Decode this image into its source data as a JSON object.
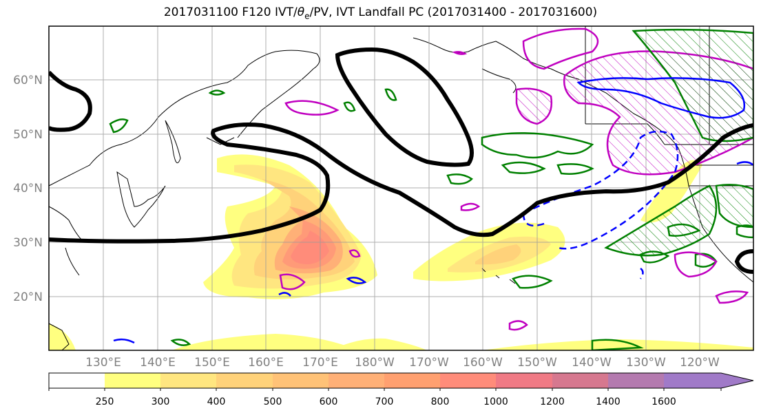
{
  "title": {
    "prefix": "2017031100 F120 IVT/",
    "theta": "θ",
    "theta_sub": "e",
    "suffix": "/PV, IVT Landfall PC (2017031400 - 2017031600)"
  },
  "map": {
    "lat_labels": [
      "20°N",
      "30°N",
      "40°N",
      "50°N",
      "60°N"
    ],
    "lon_labels": [
      "130°E",
      "140°E",
      "150°E",
      "160°E",
      "170°E",
      "180°W",
      "170°W",
      "160°W",
      "150°W",
      "140°W",
      "130°W",
      "120°W"
    ]
  },
  "colorbar": {
    "ticks": [
      "250",
      "300",
      "400",
      "500",
      "600",
      "700",
      "800",
      "1000",
      "1200",
      "1400",
      "1600"
    ],
    "colors": [
      "#ffff80",
      "#ffe680",
      "#ffd27a",
      "#ffc277",
      "#ffb077",
      "#ffa070",
      "#ff8c7a",
      "#f07a85",
      "#d6788f",
      "#b47aaf",
      "#a07ac8"
    ]
  },
  "colors": {
    "pv_contour": "#000000",
    "green": "#008000",
    "magenta": "#c000c0",
    "blue": "#0000ff"
  }
}
